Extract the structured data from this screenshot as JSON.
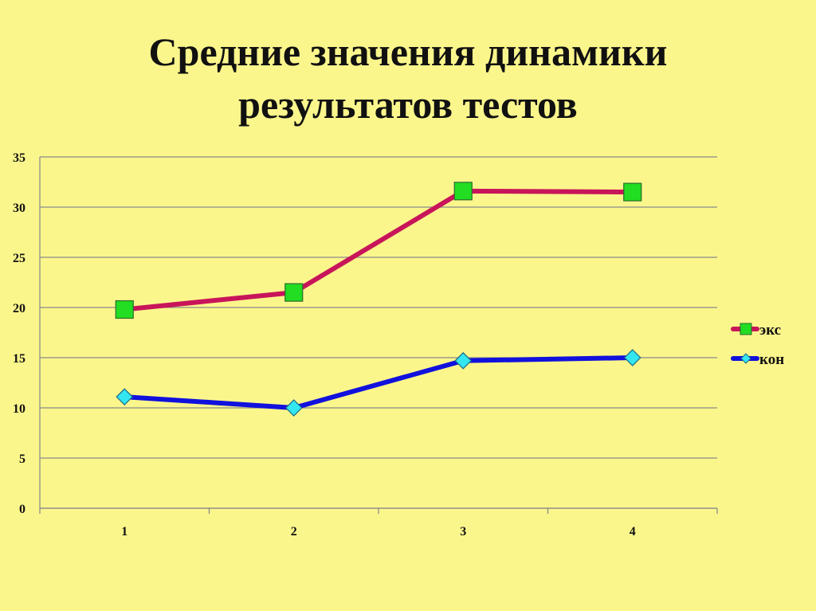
{
  "title": {
    "line1": "Средние значения динамики",
    "line2": "результатов тестов"
  },
  "chart_data": {
    "type": "line",
    "title": "Средние значения динамики результатов тестов",
    "categories": [
      "1",
      "2",
      "3",
      "4"
    ],
    "ylim": [
      0,
      35
    ],
    "yticks": [
      "0",
      "5",
      "10",
      "15",
      "20",
      "25",
      "30",
      "35"
    ],
    "grid": true,
    "legend_position": "right",
    "series": [
      {
        "name": "экс",
        "values": [
          19.8,
          21.5,
          31.6,
          31.5
        ],
        "line_color": "#c8155a",
        "marker": "square",
        "marker_color": "#22dd22"
      },
      {
        "name": "кон",
        "values": [
          11.1,
          10.0,
          14.7,
          15.0
        ],
        "line_color": "#1111dd",
        "marker": "diamond",
        "marker_color": "#33e6f0"
      }
    ]
  }
}
